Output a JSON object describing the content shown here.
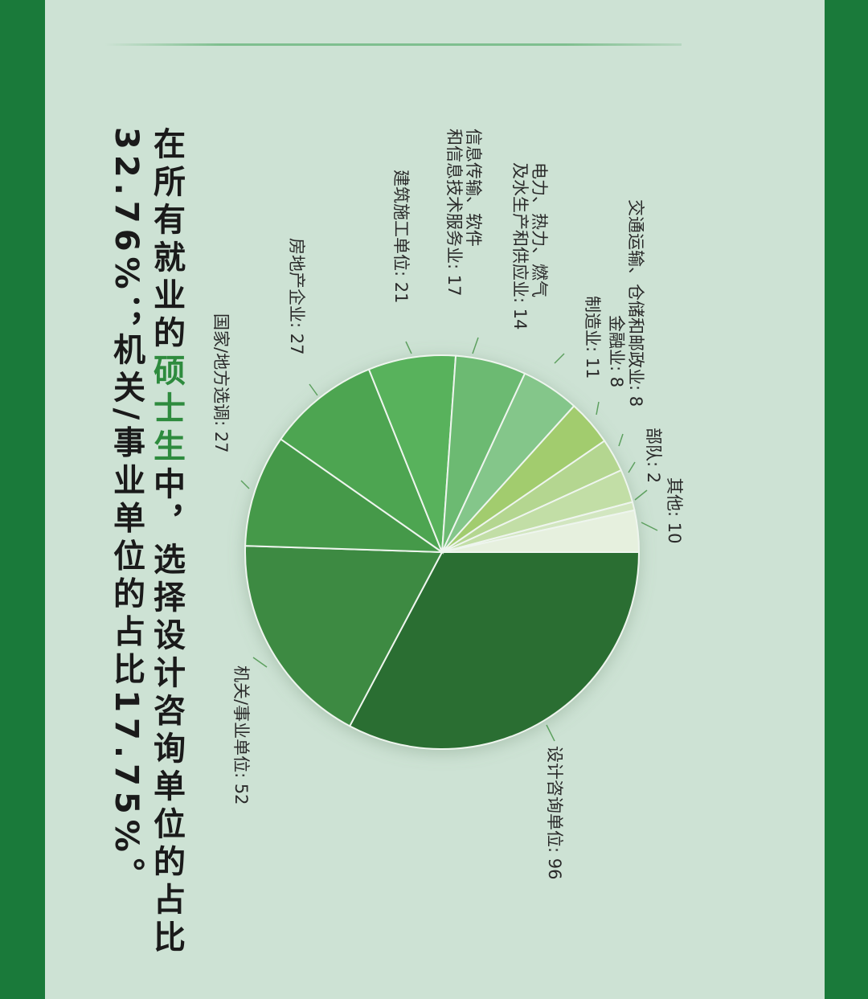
{
  "caption": {
    "line1_pre": "在所有就业的",
    "line1_highlight": "硕士生",
    "line1_post": "中，选择设计咨询单位的占比",
    "line2": "32.76%；机关/事业单位的占比17.75%。"
  },
  "colors": {
    "frame": "#1a7a3a",
    "background": "#cde2d4",
    "highlight": "#2e8b3e"
  },
  "chart_data": {
    "type": "pie",
    "orientation": "rotated 90° clockwise",
    "slices": [
      {
        "label": "设计咨询单位: 96",
        "name": "设计咨询单位",
        "value": 96,
        "color": "#2c6e32"
      },
      {
        "label": "机关/事业单位: 52",
        "name": "机关/事业单位",
        "value": 52,
        "color": "#3c8a42"
      },
      {
        "label": "国家/地方选调: 27",
        "name": "国家/地方选调",
        "value": 27,
        "color": "#45994a"
      },
      {
        "label": "房地产企业: 27",
        "name": "房地产企业",
        "value": 27,
        "color": "#4ea551"
      },
      {
        "label": "建筑施工单位: 21",
        "name": "建筑施工单位",
        "value": 21,
        "color": "#58b25c"
      },
      {
        "label": "信息传输、软件和信息技术服务业: 17",
        "name": "信息传输、软件和信息技术服务业",
        "value": 17,
        "color": "#6cba72"
      },
      {
        "label": "电力、热力、燃气及水生产和供应业: 14",
        "name": "电力、热力、燃气及水生产和供应业",
        "value": 14,
        "color": "#84c68a"
      },
      {
        "label": "制造业: 11",
        "name": "制造业",
        "value": 11,
        "color": "#a2cc6e"
      },
      {
        "label": "金融业: 8",
        "name": "金融业",
        "value": 8,
        "color": "#b4d690"
      },
      {
        "label": "交通运输、仓储和邮政业: 8",
        "name": "交通运输、仓储和邮政业",
        "value": 8,
        "color": "#c2dea6"
      },
      {
        "label": "部队: 2",
        "name": "部队",
        "value": 2,
        "color": "#d2e6c0"
      },
      {
        "label": "其他: 10",
        "name": "其他",
        "value": 10,
        "color": "#e6f0de"
      }
    ]
  }
}
